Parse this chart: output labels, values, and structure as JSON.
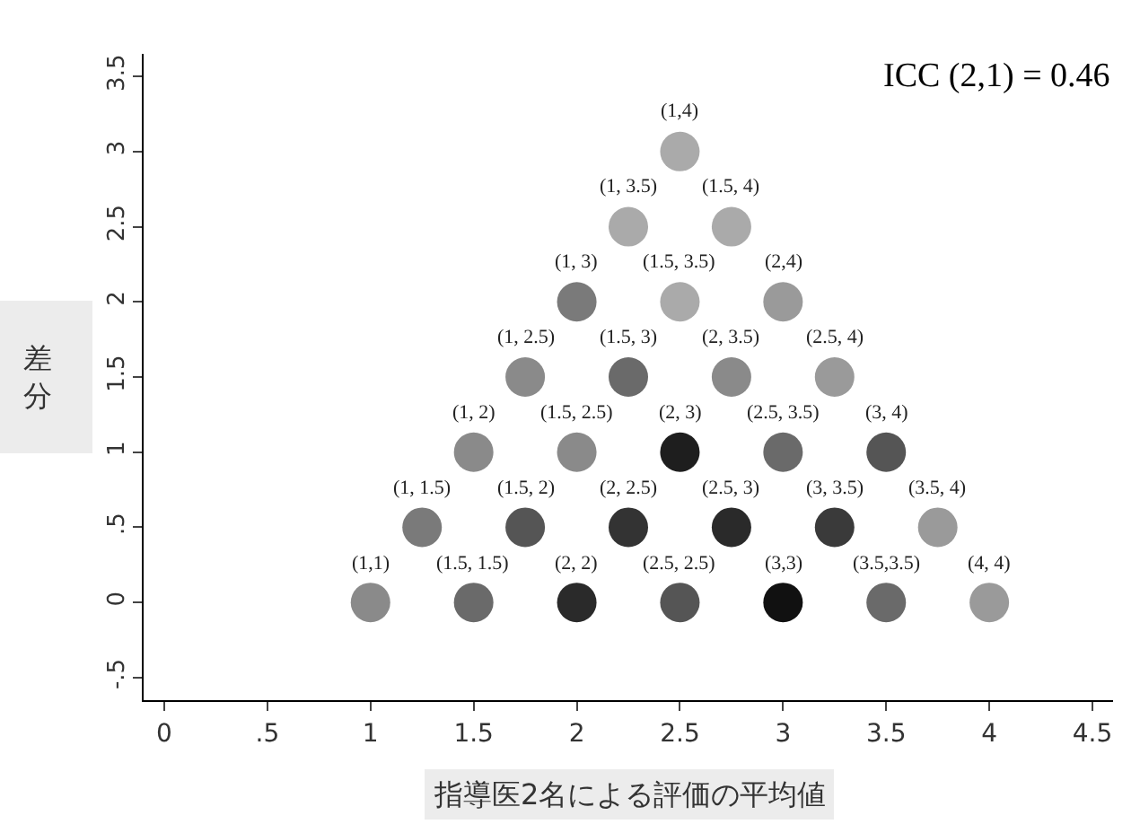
{
  "chart_data": {
    "type": "scatter",
    "xlabel": "指導医2名による評価の平均値",
    "ylabel": "差分",
    "xlim": [
      -0.1,
      4.6
    ],
    "xticks": [
      0,
      {
        "value": 0.5,
        "label": ".5"
      },
      1,
      1.5,
      2,
      2.5,
      3,
      3.5,
      4,
      4.5
    ],
    "ylim": [
      -0.65,
      3.65
    ],
    "yticks": [
      {
        "value": -0.5,
        "label": "-.5"
      },
      0,
      {
        "value": 0.5,
        "label": ".5"
      },
      1,
      1.5,
      2,
      2.5,
      3,
      3.5
    ],
    "marker": "circle",
    "series": [
      {
        "x": [
          1,
          1.5,
          2,
          2.5,
          3,
          3.5,
          4,
          1.25,
          1.75,
          2.25,
          2.75,
          3.25,
          3.75,
          1.5,
          2,
          2.5,
          3,
          3.5,
          1.75,
          2.25,
          2.75,
          3.25,
          2,
          2.5,
          3,
          2.25,
          2.75,
          2.5
        ],
        "values": [
          0,
          0,
          0,
          0,
          0,
          0,
          0,
          0.5,
          0.5,
          0.5,
          0.5,
          0.5,
          0.5,
          1,
          1,
          1,
          1,
          1,
          1.5,
          1.5,
          1.5,
          1.5,
          2,
          2,
          2,
          2.5,
          2.5,
          3
        ],
        "colors": [
          "#8a8a8a",
          "#6a6a6a",
          "#2a2a2a",
          "#555555",
          "#111111",
          "#6a6a6a",
          "#9a9a9a",
          "#7a7a7a",
          "#555555",
          "#333333",
          "#2a2a2a",
          "#3a3a3a",
          "#9a9a9a",
          "#8a8a8a",
          "#8a8a8a",
          "#1e1e1e",
          "#6a6a6a",
          "#555555",
          "#8a8a8a",
          "#6a6a6a",
          "#8a8a8a",
          "#9a9a9a",
          "#7a7a7a",
          "#aaaaaa",
          "#9a9a9a",
          "#aaaaaa",
          "#aaaaaa",
          "#aaaaaa"
        ]
      }
    ],
    "annotations": [
      {
        "text": "(1,1)",
        "x": 1,
        "y": 0
      },
      {
        "text": "(1.5, 1.5)",
        "x": 1.5,
        "y": 0
      },
      {
        "text": "(2, 2)",
        "x": 2,
        "y": 0
      },
      {
        "text": "(2.5, 2.5)",
        "x": 2.5,
        "y": 0
      },
      {
        "text": "(3,3)",
        "x": 3,
        "y": 0
      },
      {
        "text": "(3.5,3.5)",
        "x": 3.5,
        "y": 0
      },
      {
        "text": "(4, 4)",
        "x": 4,
        "y": 0
      },
      {
        "text": "(1, 1.5)",
        "x": 1.25,
        "y": 0.5
      },
      {
        "text": "(1.5, 2)",
        "x": 1.75,
        "y": 0.5
      },
      {
        "text": "(2, 2.5)",
        "x": 2.25,
        "y": 0.5
      },
      {
        "text": "(2.5, 3)",
        "x": 2.75,
        "y": 0.5
      },
      {
        "text": "(3, 3.5)",
        "x": 3.25,
        "y": 0.5
      },
      {
        "text": "(3.5, 4)",
        "x": 3.75,
        "y": 0.5
      },
      {
        "text": "(1, 2)",
        "x": 1.5,
        "y": 1
      },
      {
        "text": "(1.5, 2.5)",
        "x": 2,
        "y": 1
      },
      {
        "text": "(2, 3)",
        "x": 2.5,
        "y": 1
      },
      {
        "text": "(2.5, 3.5)",
        "x": 3,
        "y": 1
      },
      {
        "text": "(3, 4)",
        "x": 3.5,
        "y": 1
      },
      {
        "text": "(1, 2.5)",
        "x": 1.75,
        "y": 1.5
      },
      {
        "text": "(1.5, 3)",
        "x": 2.25,
        "y": 1.5
      },
      {
        "text": "(2, 3.5)",
        "x": 2.75,
        "y": 1.5
      },
      {
        "text": "(2.5, 4)",
        "x": 3.25,
        "y": 1.5
      },
      {
        "text": "(1, 3)",
        "x": 2,
        "y": 2
      },
      {
        "text": "(1.5, 3.5)",
        "x": 2.5,
        "y": 2
      },
      {
        "text": "(2,4)",
        "x": 3,
        "y": 2
      },
      {
        "text": "(1, 3.5)",
        "x": 2.25,
        "y": 2.5
      },
      {
        "text": "(1.5, 4)",
        "x": 2.75,
        "y": 2.5
      },
      {
        "text": "(1,4)",
        "x": 2.5,
        "y": 3
      },
      "ICC (2,1) = 0.46"
    ]
  }
}
